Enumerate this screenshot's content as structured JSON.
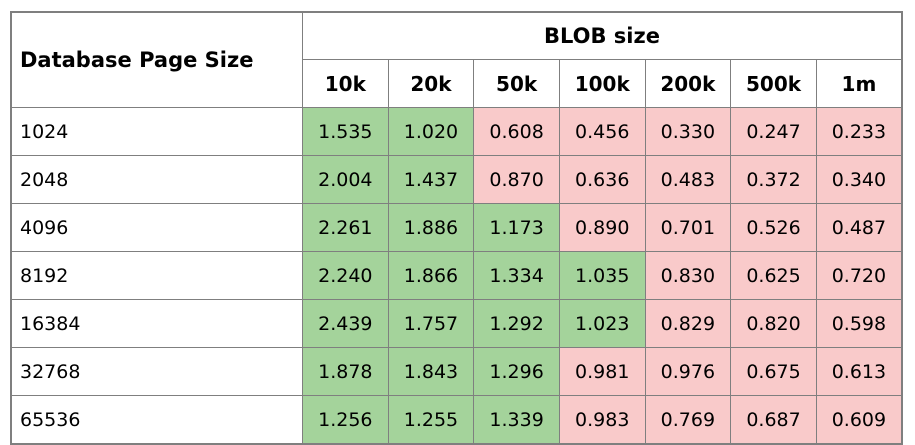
{
  "table": {
    "corner_header": "Database Page Size",
    "group_header": "BLOB size",
    "columns": [
      "10k",
      "20k",
      "50k",
      "100k",
      "200k",
      "500k",
      "1m"
    ],
    "rows": [
      {
        "label": "1024",
        "values": [
          "1.535",
          "1.020",
          "0.608",
          "0.456",
          "0.330",
          "0.247",
          "0.233"
        ]
      },
      {
        "label": "2048",
        "values": [
          "2.004",
          "1.437",
          "0.870",
          "0.636",
          "0.483",
          "0.372",
          "0.340"
        ]
      },
      {
        "label": "4096",
        "values": [
          "2.261",
          "1.886",
          "1.173",
          "0.890",
          "0.701",
          "0.526",
          "0.487"
        ]
      },
      {
        "label": "8192",
        "values": [
          "2.240",
          "1.866",
          "1.334",
          "1.035",
          "0.830",
          "0.625",
          "0.720"
        ]
      },
      {
        "label": "16384",
        "values": [
          "2.439",
          "1.757",
          "1.292",
          "1.023",
          "0.829",
          "0.820",
          "0.598"
        ]
      },
      {
        "label": "32768",
        "values": [
          "1.878",
          "1.843",
          "1.296",
          "0.981",
          "0.976",
          "0.675",
          "0.613"
        ]
      },
      {
        "label": "65536",
        "values": [
          "1.256",
          "1.255",
          "1.339",
          "0.983",
          "0.769",
          "0.687",
          "0.609"
        ]
      }
    ],
    "green_threshold": 1.0,
    "colors": {
      "green_cell_bg": "#a4d39b",
      "pink_cell_bg": "#f9caca",
      "border": "#7f7f7f",
      "header_bg": "#ffffff",
      "text": "#000000"
    }
  },
  "chart_data": {
    "type": "table",
    "title": "BLOB size",
    "row_header": "Database Page Size",
    "columns": [
      "10k",
      "20k",
      "50k",
      "100k",
      "200k",
      "500k",
      "1m"
    ],
    "row_labels": [
      1024,
      2048,
      4096,
      8192,
      16384,
      32768,
      65536
    ],
    "values": [
      [
        1.535,
        1.02,
        0.608,
        0.456,
        0.33,
        0.247,
        0.233
      ],
      [
        2.004,
        1.437,
        0.87,
        0.636,
        0.483,
        0.372,
        0.34
      ],
      [
        2.261,
        1.886,
        1.173,
        0.89,
        0.701,
        0.526,
        0.487
      ],
      [
        2.24,
        1.866,
        1.334,
        1.035,
        0.83,
        0.625,
        0.72
      ],
      [
        2.439,
        1.757,
        1.292,
        1.023,
        0.829,
        0.82,
        0.598
      ],
      [
        1.878,
        1.843,
        1.296,
        0.981,
        0.976,
        0.675,
        0.613
      ],
      [
        1.256,
        1.255,
        1.339,
        0.983,
        0.769,
        0.687,
        0.609
      ]
    ],
    "cell_color_rule": "green if value >= 1.0 else pink"
  }
}
